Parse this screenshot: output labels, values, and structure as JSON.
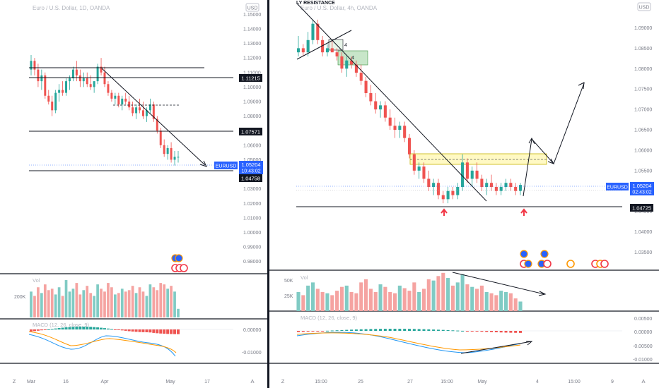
{
  "colors": {
    "up": "#26a69a",
    "down": "#ef5350",
    "accent": "#2962ff",
    "line": "#131722",
    "grid": "#e0e3eb",
    "axis_text": "#787b86",
    "zone_yellow": "#fff9c4",
    "zone_green": "#c8e6c9",
    "arrow_red": "#f23645",
    "macd_line": "#2196f3",
    "signal_line": "#ff9800"
  },
  "left_panel": {
    "title": "Euro / U.S. Dollar, 1D, OANDA",
    "currency": "USD",
    "price_ticks": [
      "1.15000",
      "1.14000",
      "1.13000",
      "1.12000",
      "1.11000",
      "1.10000",
      "1.09000",
      "1.08000",
      "1.07000",
      "1.06000",
      "1.05000",
      "1.04000",
      "1.03000",
      "1.02000",
      "1.01000",
      "1.00000",
      "0.99000",
      "0.98000"
    ],
    "level_tags": [
      {
        "label": "1.11215",
        "price": 1.11215
      },
      {
        "label": "1.07571",
        "price": 1.07571
      },
      {
        "label": "1.04758",
        "price": 1.04758
      }
    ],
    "symbol_tag": "EURUSD",
    "last_price": "1.05204",
    "countdown": "10:43:02",
    "volume_label": "Vol",
    "volume_ticks": [
      "200K"
    ],
    "macd_label": "MACD (12, 26, close, 9)",
    "macd_ticks": [
      "0.00000",
      "-0.01000"
    ],
    "x_ticks": [
      "Mar",
      "16",
      "Apr",
      "May",
      "17"
    ]
  },
  "right_panel": {
    "title": "Euro / U.S. Dollar, 4h, OANDA",
    "overlay_label": "LY RESISTANCE",
    "currency": "USD",
    "price_ticks": [
      "1.09000",
      "1.08500",
      "1.08000",
      "1.07500",
      "1.07000",
      "1.06500",
      "1.06000",
      "1.05500",
      "1.05000",
      "1.04500",
      "1.04000",
      "1.03500"
    ],
    "level_tags": [
      {
        "label": "1.04725",
        "price": 1.04725
      }
    ],
    "symbol_tag": "EURUSD",
    "last_price": "1.05204",
    "countdown": "02:43:02",
    "volume_label": "Vol",
    "volume_ticks": [
      "50K",
      "25K"
    ],
    "macd_label": "MACD (12, 26, close, 9)",
    "macd_ticks": [
      "0.00500",
      "0.00000",
      "-0.00500",
      "-0.01000"
    ],
    "x_ticks": [
      "15:00",
      "25",
      "27",
      "15:00",
      "May",
      "4",
      "15:00",
      "9"
    ],
    "zone_marks": [
      "4",
      "4"
    ]
  },
  "bottom_bar": {
    "left_z": "Z",
    "left_a": "A",
    "right_z": "Z",
    "right_a": "A"
  },
  "chart_data": [
    {
      "type": "candlestick",
      "title": "Euro / U.S. Dollar, 1D, OANDA",
      "ylim": [
        0.975,
        1.155
      ],
      "ohlc": [
        [
          1.112,
          1.122,
          1.108,
          1.118
        ],
        [
          1.118,
          1.12,
          1.108,
          1.112
        ],
        [
          1.112,
          1.116,
          1.1,
          1.104
        ],
        [
          1.104,
          1.112,
          1.098,
          1.108
        ],
        [
          1.108,
          1.11,
          1.092,
          1.094
        ],
        [
          1.094,
          1.098,
          1.088,
          1.09
        ],
        [
          1.09,
          1.094,
          1.08,
          1.084
        ],
        [
          1.084,
          1.098,
          1.082,
          1.096
        ],
        [
          1.096,
          1.102,
          1.09,
          1.098
        ],
        [
          1.098,
          1.104,
          1.094,
          1.096
        ],
        [
          1.096,
          1.106,
          1.094,
          1.104
        ],
        [
          1.104,
          1.108,
          1.098,
          1.106
        ],
        [
          1.106,
          1.114,
          1.104,
          1.112
        ],
        [
          1.112,
          1.118,
          1.104,
          1.108
        ],
        [
          1.108,
          1.112,
          1.1,
          1.104
        ],
        [
          1.104,
          1.11,
          1.1,
          1.106
        ],
        [
          1.106,
          1.11,
          1.1,
          1.102
        ],
        [
          1.102,
          1.108,
          1.098,
          1.1
        ],
        [
          1.1,
          1.104,
          1.096,
          1.104
        ],
        [
          1.104,
          1.116,
          1.102,
          1.114
        ],
        [
          1.114,
          1.12,
          1.108,
          1.11
        ],
        [
          1.11,
          1.114,
          1.1,
          1.102
        ],
        [
          1.102,
          1.104,
          1.094,
          1.096
        ],
        [
          1.096,
          1.098,
          1.09,
          1.092
        ],
        [
          1.092,
          1.096,
          1.088,
          1.094
        ],
        [
          1.094,
          1.096,
          1.086,
          1.088
        ],
        [
          1.088,
          1.094,
          1.084,
          1.092
        ],
        [
          1.092,
          1.096,
          1.088,
          1.09
        ],
        [
          1.09,
          1.094,
          1.084,
          1.086
        ],
        [
          1.086,
          1.09,
          1.08,
          1.082
        ],
        [
          1.082,
          1.088,
          1.078,
          1.086
        ],
        [
          1.086,
          1.092,
          1.082,
          1.084
        ],
        [
          1.084,
          1.09,
          1.078,
          1.08
        ],
        [
          1.08,
          1.086,
          1.076,
          1.084
        ],
        [
          1.084,
          1.092,
          1.082,
          1.088
        ],
        [
          1.088,
          1.09,
          1.076,
          1.078
        ],
        [
          1.078,
          1.08,
          1.068,
          1.07
        ],
        [
          1.07,
          1.072,
          1.058,
          1.06
        ],
        [
          1.06,
          1.064,
          1.052,
          1.054
        ],
        [
          1.054,
          1.06,
          1.05,
          1.058
        ],
        [
          1.058,
          1.062,
          1.048,
          1.05
        ],
        [
          1.05,
          1.056,
          1.046,
          1.052
        ],
        [
          1.052,
          1.056,
          1.048,
          1.052
        ]
      ],
      "volume": [
        180,
        150,
        210,
        170,
        230,
        190,
        200,
        160,
        210,
        150,
        260,
        180,
        200,
        240,
        160,
        190,
        220,
        170,
        150,
        230,
        200,
        180,
        240,
        210,
        160,
        170,
        200,
        180,
        190,
        220,
        170,
        210,
        180,
        150,
        230,
        210,
        190,
        240,
        230,
        200,
        220,
        180,
        60
      ]
    },
    {
      "type": "candlestick",
      "title": "Euro / U.S. Dollar, 4h, OANDA",
      "ylim": [
        1.0325,
        1.0925
      ],
      "ohlc": [
        [
          1.084,
          1.088,
          1.083,
          1.085
        ],
        [
          1.085,
          1.086,
          1.083,
          1.084
        ],
        [
          1.084,
          1.089,
          1.083,
          1.087
        ],
        [
          1.087,
          1.092,
          1.086,
          1.091
        ],
        [
          1.091,
          1.092,
          1.086,
          1.087
        ],
        [
          1.087,
          1.088,
          1.083,
          1.084
        ],
        [
          1.084,
          1.086,
          1.083,
          1.085
        ],
        [
          1.085,
          1.087,
          1.084,
          1.084
        ],
        [
          1.084,
          1.085,
          1.082,
          1.083
        ],
        [
          1.083,
          1.084,
          1.079,
          1.08
        ],
        [
          1.08,
          1.083,
          1.078,
          1.082
        ],
        [
          1.082,
          1.083,
          1.08,
          1.081
        ],
        [
          1.081,
          1.082,
          1.078,
          1.079
        ],
        [
          1.079,
          1.081,
          1.076,
          1.077
        ],
        [
          1.077,
          1.078,
          1.073,
          1.074
        ],
        [
          1.074,
          1.076,
          1.071,
          1.072
        ],
        [
          1.072,
          1.074,
          1.069,
          1.07
        ],
        [
          1.07,
          1.072,
          1.068,
          1.071
        ],
        [
          1.071,
          1.072,
          1.067,
          1.068
        ],
        [
          1.068,
          1.07,
          1.065,
          1.066
        ],
        [
          1.066,
          1.068,
          1.063,
          1.065
        ],
        [
          1.065,
          1.067,
          1.063,
          1.066
        ],
        [
          1.066,
          1.067,
          1.062,
          1.063
        ],
        [
          1.063,
          1.064,
          1.058,
          1.059
        ],
        [
          1.059,
          1.06,
          1.054,
          1.055
        ],
        [
          1.055,
          1.057,
          1.053,
          1.056
        ],
        [
          1.056,
          1.057,
          1.052,
          1.053
        ],
        [
          1.053,
          1.055,
          1.05,
          1.051
        ],
        [
          1.051,
          1.053,
          1.049,
          1.052
        ],
        [
          1.052,
          1.053,
          1.048,
          1.049
        ],
        [
          1.049,
          1.05,
          1.047,
          1.048
        ],
        [
          1.048,
          1.051,
          1.047,
          1.05
        ],
        [
          1.05,
          1.051,
          1.048,
          1.049
        ],
        [
          1.049,
          1.052,
          1.048,
          1.051
        ],
        [
          1.051,
          1.059,
          1.05,
          1.057
        ],
        [
          1.057,
          1.058,
          1.052,
          1.053
        ],
        [
          1.053,
          1.056,
          1.051,
          1.055
        ],
        [
          1.055,
          1.057,
          1.052,
          1.053
        ],
        [
          1.053,
          1.054,
          1.05,
          1.051
        ],
        [
          1.051,
          1.053,
          1.049,
          1.052
        ],
        [
          1.052,
          1.054,
          1.05,
          1.051
        ],
        [
          1.051,
          1.052,
          1.049,
          1.05
        ],
        [
          1.05,
          1.052,
          1.049,
          1.051
        ],
        [
          1.051,
          1.053,
          1.05,
          1.052
        ],
        [
          1.052,
          1.053,
          1.05,
          1.051
        ],
        [
          1.051,
          1.052,
          1.049,
          1.05
        ],
        [
          1.05,
          1.052,
          1.049,
          1.0515
        ]
      ],
      "volume": [
        30,
        25,
        40,
        45,
        35,
        30,
        28,
        25,
        32,
        38,
        40,
        30,
        28,
        45,
        50,
        35,
        30,
        42,
        38,
        30,
        28,
        40,
        36,
        32,
        45,
        30,
        35,
        50,
        48,
        55,
        60,
        52,
        40,
        45,
        58,
        42,
        38,
        35,
        40,
        30,
        28,
        25,
        32,
        30,
        28,
        20,
        15
      ]
    }
  ]
}
